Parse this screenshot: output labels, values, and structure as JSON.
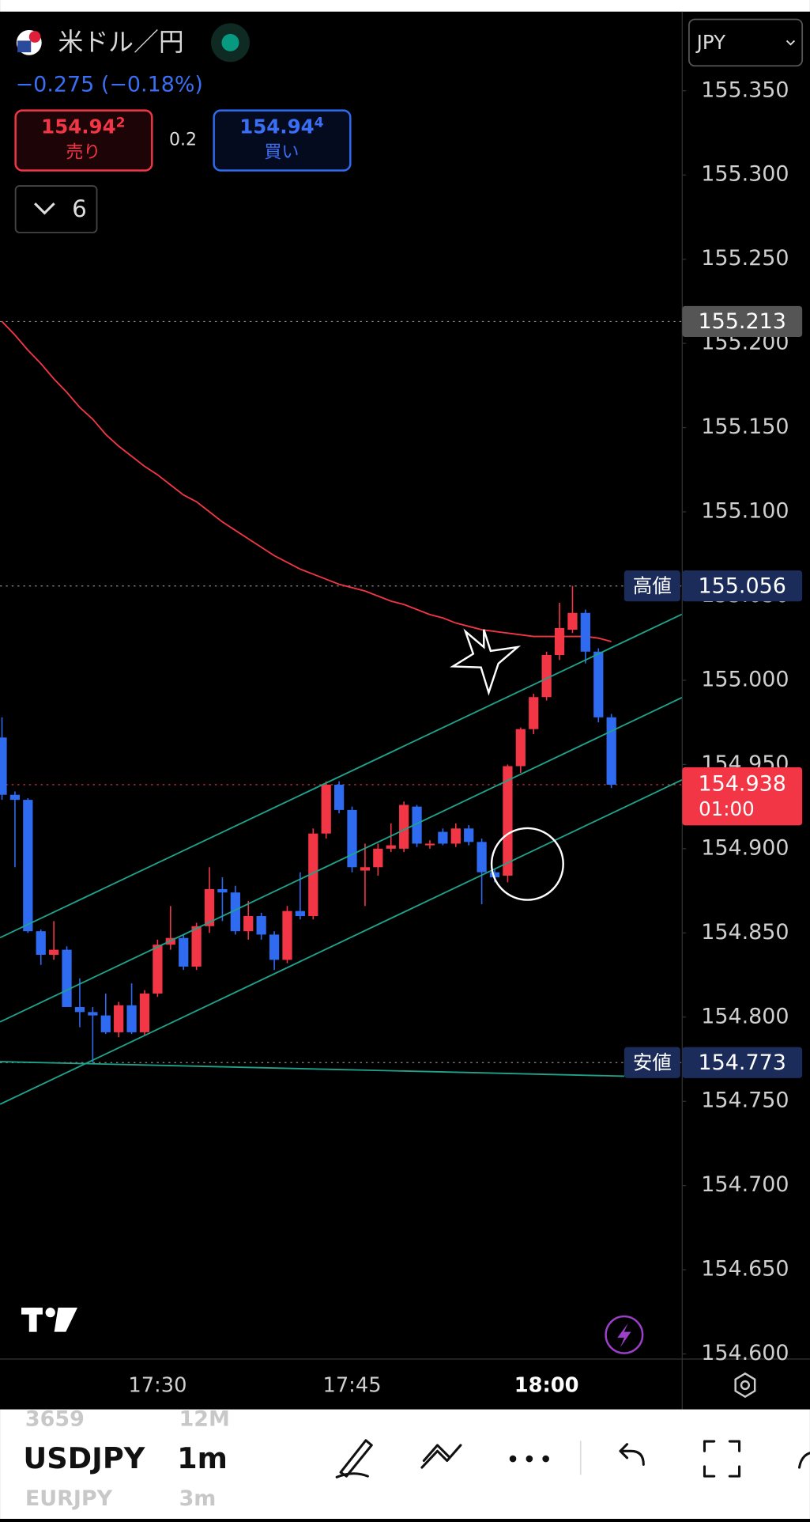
{
  "header": {
    "symbol": "米ドル／円",
    "change": "−0.275 (−0.18%)",
    "sell": {
      "price": "154.94",
      "pip": "2",
      "label": "売り"
    },
    "spread": "0.2",
    "buy": {
      "price": "154.94",
      "pip": "4",
      "label": "買い"
    },
    "indicator_count": "6",
    "currency": "JPY"
  },
  "chart_data": {
    "type": "candlestick",
    "categories": [
      null,
      null,
      null,
      null,
      null,
      null,
      null,
      null,
      null,
      null,
      null,
      null,
      "17:30",
      null,
      null,
      null,
      null,
      null,
      null,
      null,
      null,
      null,
      null,
      null,
      null,
      null,
      null,
      "17:45",
      null,
      null,
      null,
      null,
      null,
      null,
      null,
      null,
      null,
      null,
      null,
      null,
      null,
      null,
      "18:00",
      null,
      null,
      null,
      null,
      null
    ],
    "open": [
      154.966,
      154.932,
      154.929,
      154.851,
      154.837,
      154.84,
      154.806,
      154.803,
      154.801,
      154.791,
      154.807,
      154.791,
      154.814,
      154.843,
      154.847,
      154.83,
      154.854,
      154.876,
      154.874,
      154.851,
      154.86,
      154.849,
      154.834,
      154.863,
      154.86,
      154.909,
      154.938,
      154.923,
      154.887,
      154.889,
      154.9,
      154.9,
      154.925,
      154.902,
      154.91,
      154.903,
      154.912,
      154.904,
      154.886,
      154.884,
      154.949,
      154.971,
      154.99,
      155.015,
      155.03,
      155.04,
      155.017,
      154.978
    ],
    "high": [
      154.978,
      154.934,
      154.93,
      154.852,
      154.857,
      154.842,
      154.823,
      154.806,
      154.814,
      154.809,
      154.82,
      154.816,
      154.846,
      154.866,
      154.849,
      154.856,
      154.889,
      154.883,
      154.878,
      154.869,
      154.862,
      154.851,
      154.866,
      154.886,
      154.912,
      154.94,
      154.94,
      154.925,
      154.903,
      154.903,
      154.915,
      154.928,
      154.926,
      154.905,
      154.912,
      154.915,
      154.914,
      154.906,
      154.888,
      154.95,
      154.972,
      154.992,
      155.017,
      155.046,
      155.056,
      155.042,
      155.019,
      154.98
    ],
    "low": [
      154.929,
      154.889,
      154.85,
      154.831,
      154.834,
      154.806,
      154.794,
      154.773,
      154.79,
      154.788,
      154.79,
      154.789,
      154.812,
      154.84,
      154.828,
      154.828,
      154.85,
      154.857,
      154.849,
      154.846,
      154.846,
      154.828,
      154.832,
      154.858,
      154.858,
      154.906,
      154.921,
      154.886,
      154.866,
      154.884,
      154.898,
      154.898,
      154.901,
      154.9,
      154.902,
      154.901,
      154.902,
      154.867,
      154.88,
      154.88,
      154.945,
      154.968,
      154.988,
      155.012,
      155.028,
      155.01,
      154.975,
      154.936
    ],
    "close": [
      154.932,
      154.929,
      154.851,
      154.837,
      154.84,
      154.806,
      154.803,
      154.801,
      154.791,
      154.807,
      154.791,
      154.814,
      154.843,
      154.847,
      154.83,
      154.854,
      154.876,
      154.874,
      154.851,
      154.86,
      154.849,
      154.834,
      154.863,
      154.86,
      154.909,
      154.938,
      154.923,
      154.889,
      154.889,
      154.9,
      154.902,
      154.926,
      154.903,
      154.903,
      154.903,
      154.912,
      154.904,
      154.886,
      154.883,
      154.949,
      154.971,
      154.99,
      155.015,
      155.031,
      155.04,
      155.017,
      154.978,
      154.938
    ],
    "up_color": "#f23645",
    "down_color": "#2e6bf0",
    "ma": {
      "color": "#f23645",
      "values": [
        155.213,
        155.205,
        155.196,
        155.188,
        155.179,
        155.171,
        155.162,
        155.155,
        155.146,
        155.139,
        155.133,
        155.127,
        155.122,
        155.116,
        155.11,
        155.106,
        155.1,
        155.094,
        155.089,
        155.084,
        155.079,
        155.074,
        155.07,
        155.066,
        155.063,
        155.06,
        155.057,
        155.055,
        155.053,
        155.05,
        155.047,
        155.045,
        155.042,
        155.039,
        155.037,
        155.034,
        155.032,
        155.03,
        155.029,
        155.028,
        155.027,
        155.026,
        155.026,
        155.026,
        155.026,
        155.026,
        155.025,
        155.023
      ]
    },
    "ylim": [
      154.597,
      155.397
    ],
    "yticks": [
      {
        "value": 154.6,
        "label": "154.600"
      },
      {
        "value": 154.65,
        "label": "154.650"
      },
      {
        "value": 154.7,
        "label": "154.700"
      },
      {
        "value": 154.75,
        "label": "154.750"
      },
      {
        "value": 154.8,
        "label": "154.800"
      },
      {
        "value": 154.85,
        "label": "154.850"
      },
      {
        "value": 154.9,
        "label": "154.900"
      },
      {
        "value": 154.95,
        "label": "154.950"
      },
      {
        "value": 155.0,
        "label": "155.000"
      },
      {
        "value": 155.05,
        "label": "155.050"
      },
      {
        "value": 155.1,
        "label": "155.100"
      },
      {
        "value": 155.15,
        "label": "155.150"
      },
      {
        "value": 155.2,
        "label": "155.200"
      },
      {
        "value": 155.25,
        "label": "155.250"
      },
      {
        "value": 155.3,
        "label": "155.300"
      },
      {
        "value": 155.35,
        "label": "155.350"
      }
    ],
    "price_labels": [
      {
        "value": 155.213,
        "color": "#555555"
      },
      {
        "label": "高値",
        "value": 155.056,
        "color": "#1b2c5a"
      },
      {
        "value": 154.938,
        "sub": "01:00",
        "color": "#f23645"
      },
      {
        "label": "安値",
        "value": 154.773,
        "color": "#1b2c5a"
      }
    ]
  },
  "toolbar": {
    "symbol": "USDJPY",
    "interval": "1m",
    "above": [
      "3659",
      "12M"
    ],
    "below": [
      "EURJPY",
      "3m"
    ]
  }
}
